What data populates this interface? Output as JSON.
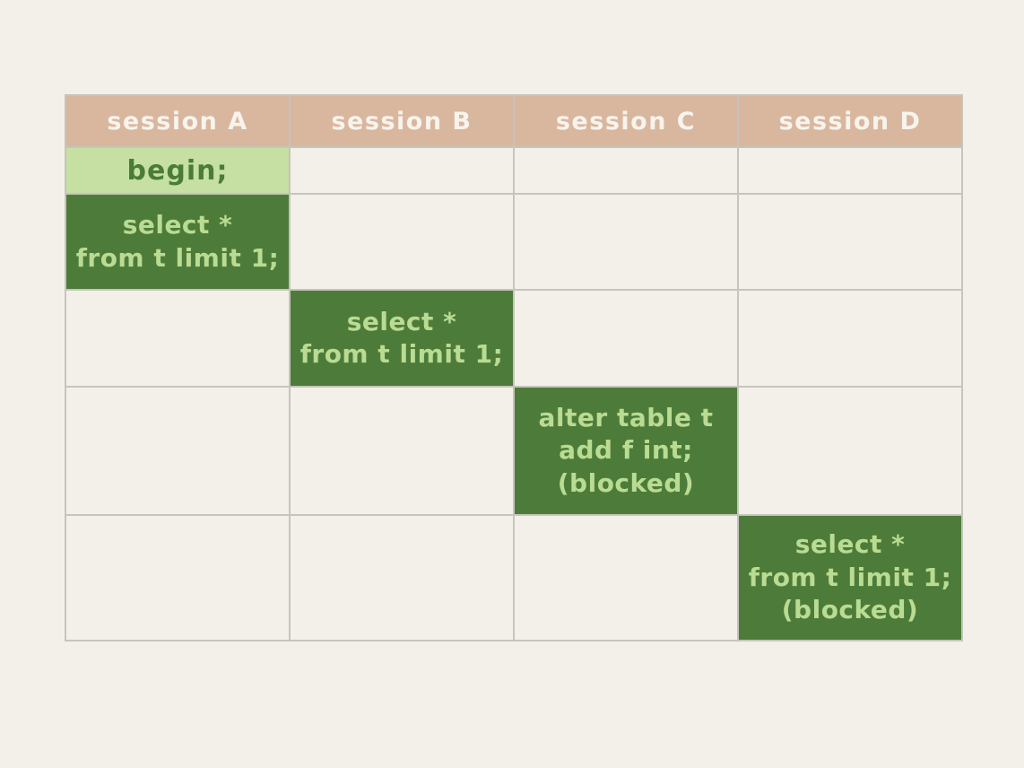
{
  "theme": {
    "background": "#f2f0e9",
    "grid_line": "#c6c4bc",
    "header_bg": "#d9b79f",
    "header_text": "#f7f4ed",
    "statement_bg": "#4d7c3a",
    "statement_text": "#badb92",
    "begin_bg": "#c5e0a2",
    "begin_text": "#4a7c38"
  },
  "table": {
    "headers": [
      "session A",
      "session B",
      "session C",
      "session D"
    ],
    "cells": {
      "a_begin": "begin;",
      "a_select": "select *\nfrom t limit 1;",
      "b_select": "select *\nfrom t limit 1;",
      "c_alter": "alter table t\nadd f int;\n(blocked)",
      "d_select": "select *\nfrom t limit 1;\n(blocked)"
    }
  }
}
